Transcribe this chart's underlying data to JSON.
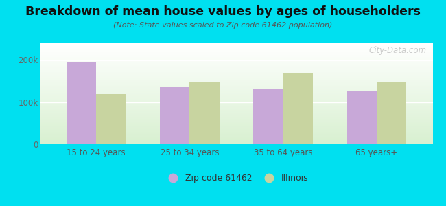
{
  "title": "Breakdown of mean house values by ages of householders",
  "subtitle": "(Note: State values scaled to Zip code 61462 population)",
  "categories": [
    "15 to 24 years",
    "25 to 34 years",
    "35 to 64 years",
    "65 years+"
  ],
  "zip_values": [
    196000,
    135000,
    133000,
    126000
  ],
  "state_values": [
    120000,
    147000,
    168000,
    148000
  ],
  "zip_color": "#c8a8d8",
  "state_color": "#c8d4a0",
  "background_outer": "#00e0f0",
  "ylim": [
    0,
    240000
  ],
  "yticks": [
    0,
    100000,
    200000
  ],
  "ytick_labels": [
    "0",
    "100k",
    "200k"
  ],
  "legend_zip_label": "Zip code 61462",
  "legend_state_label": "Illinois",
  "bar_width": 0.32,
  "watermark": "City-Data.com"
}
